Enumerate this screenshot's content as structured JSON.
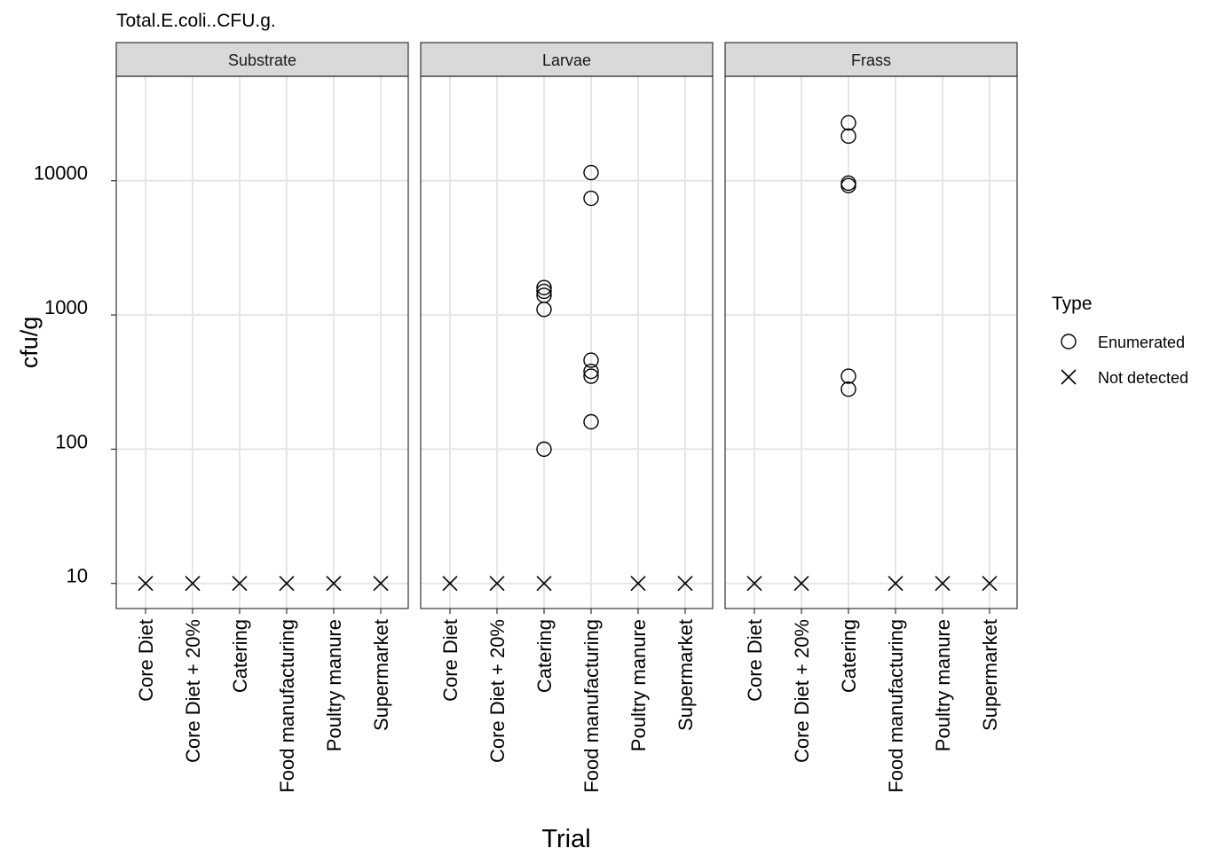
{
  "chart_data": {
    "type": "scatter",
    "title": "Total.E.coli..CFU.g.",
    "xlabel": "Trial",
    "ylabel": "cfu/g",
    "y_scale": "log10",
    "ylim": [
      6.5,
      60000
    ],
    "yticks": [
      10,
      100,
      1000,
      10000
    ],
    "ytick_labels": [
      "10",
      "100",
      "1000",
      "10000"
    ],
    "grid": true,
    "categories": [
      "Core Diet",
      "Core Diet + 20%",
      "Catering",
      "Food manufacturing",
      "Poultry manure",
      "Supermarket"
    ],
    "facets": [
      "Substrate",
      "Larvae",
      "Frass"
    ],
    "legend": {
      "title": "Type",
      "position": "right",
      "entries": [
        {
          "label": "Enumerated",
          "shape": "circle"
        },
        {
          "label": "Not detected",
          "shape": "cross"
        }
      ]
    },
    "points": [
      {
        "facet": "Substrate",
        "x": "Core Diet",
        "y": 10,
        "type": "Not detected"
      },
      {
        "facet": "Substrate",
        "x": "Core Diet + 20%",
        "y": 10,
        "type": "Not detected"
      },
      {
        "facet": "Substrate",
        "x": "Catering",
        "y": 10,
        "type": "Not detected"
      },
      {
        "facet": "Substrate",
        "x": "Food manufacturing",
        "y": 10,
        "type": "Not detected"
      },
      {
        "facet": "Substrate",
        "x": "Poultry manure",
        "y": 10,
        "type": "Not detected"
      },
      {
        "facet": "Substrate",
        "x": "Supermarket",
        "y": 10,
        "type": "Not detected"
      },
      {
        "facet": "Larvae",
        "x": "Core Diet",
        "y": 10,
        "type": "Not detected"
      },
      {
        "facet": "Larvae",
        "x": "Core Diet + 20%",
        "y": 10,
        "type": "Not detected"
      },
      {
        "facet": "Larvae",
        "x": "Catering",
        "y": 10,
        "type": "Not detected"
      },
      {
        "facet": "Larvae",
        "x": "Catering",
        "y": 100,
        "type": "Enumerated"
      },
      {
        "facet": "Larvae",
        "x": "Catering",
        "y": 1100,
        "type": "Enumerated"
      },
      {
        "facet": "Larvae",
        "x": "Catering",
        "y": 1400,
        "type": "Enumerated"
      },
      {
        "facet": "Larvae",
        "x": "Catering",
        "y": 1500,
        "type": "Enumerated"
      },
      {
        "facet": "Larvae",
        "x": "Catering",
        "y": 1600,
        "type": "Enumerated"
      },
      {
        "facet": "Larvae",
        "x": "Food manufacturing",
        "y": 160,
        "type": "Enumerated"
      },
      {
        "facet": "Larvae",
        "x": "Food manufacturing",
        "y": 350,
        "type": "Enumerated"
      },
      {
        "facet": "Larvae",
        "x": "Food manufacturing",
        "y": 380,
        "type": "Enumerated"
      },
      {
        "facet": "Larvae",
        "x": "Food manufacturing",
        "y": 460,
        "type": "Enumerated"
      },
      {
        "facet": "Larvae",
        "x": "Food manufacturing",
        "y": 7400,
        "type": "Enumerated"
      },
      {
        "facet": "Larvae",
        "x": "Food manufacturing",
        "y": 11500,
        "type": "Enumerated"
      },
      {
        "facet": "Larvae",
        "x": "Poultry manure",
        "y": 10,
        "type": "Not detected"
      },
      {
        "facet": "Larvae",
        "x": "Supermarket",
        "y": 10,
        "type": "Not detected"
      },
      {
        "facet": "Frass",
        "x": "Core Diet",
        "y": 10,
        "type": "Not detected"
      },
      {
        "facet": "Frass",
        "x": "Core Diet + 20%",
        "y": 10,
        "type": "Not detected"
      },
      {
        "facet": "Frass",
        "x": "Catering",
        "y": 280,
        "type": "Enumerated"
      },
      {
        "facet": "Frass",
        "x": "Catering",
        "y": 350,
        "type": "Enumerated"
      },
      {
        "facet": "Frass",
        "x": "Catering",
        "y": 9200,
        "type": "Enumerated"
      },
      {
        "facet": "Frass",
        "x": "Catering",
        "y": 9600,
        "type": "Enumerated"
      },
      {
        "facet": "Frass",
        "x": "Catering",
        "y": 21500,
        "type": "Enumerated"
      },
      {
        "facet": "Frass",
        "x": "Catering",
        "y": 27000,
        "type": "Enumerated"
      },
      {
        "facet": "Frass",
        "x": "Food manufacturing",
        "y": 10,
        "type": "Not detected"
      },
      {
        "facet": "Frass",
        "x": "Poultry manure",
        "y": 10,
        "type": "Not detected"
      },
      {
        "facet": "Frass",
        "x": "Supermarket",
        "y": 10,
        "type": "Not detected"
      }
    ]
  }
}
